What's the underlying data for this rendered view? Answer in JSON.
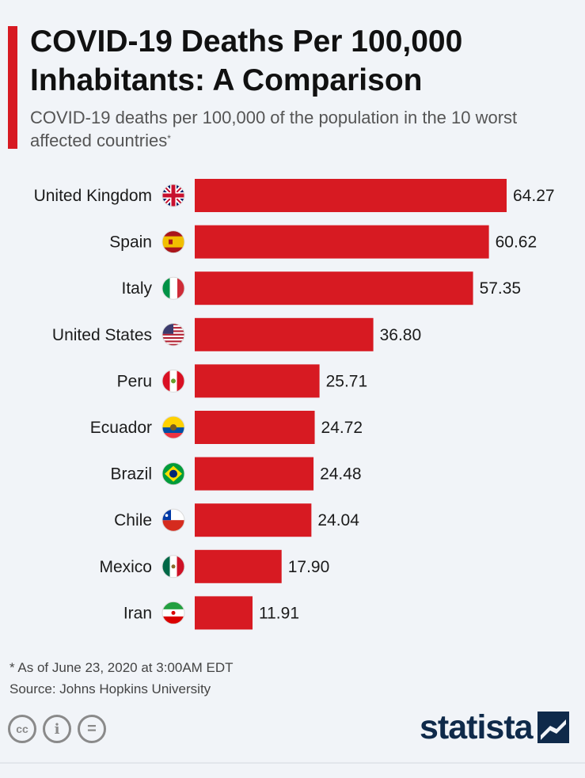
{
  "header": {
    "title": "COVID-19 Deaths Per 100,000 Inhabitants: A Comparison",
    "subtitle": "COVID-19 deaths per 100,000 of the population in the 10 worst affected countries",
    "subtitle_marker": "*"
  },
  "colors": {
    "accent": "#d71a22",
    "bar": "#d71a22",
    "logo": "#0f2a4a",
    "background": "#f1f4f8"
  },
  "chart_data": {
    "type": "bar",
    "orientation": "horizontal",
    "title": "COVID-19 Deaths Per 100,000 Inhabitants: A Comparison",
    "subtitle": "COVID-19 deaths per 100,000 of the population in the 10 worst affected countries",
    "categories": [
      "United Kingdom",
      "Spain",
      "Italy",
      "United States",
      "Peru",
      "Ecuador",
      "Brazil",
      "Chile",
      "Mexico",
      "Iran"
    ],
    "values": [
      64.27,
      60.62,
      57.35,
      36.8,
      25.71,
      24.72,
      24.48,
      24.04,
      17.9,
      11.91
    ],
    "value_labels": [
      "64.27",
      "60.62",
      "57.35",
      "36.80",
      "25.71",
      "24.72",
      "24.48",
      "24.04",
      "17.90",
      "11.91"
    ],
    "flag_icons": [
      "uk-flag-icon",
      "spain-flag-icon",
      "italy-flag-icon",
      "usa-flag-icon",
      "peru-flag-icon",
      "ecuador-flag-icon",
      "brazil-flag-icon",
      "chile-flag-icon",
      "mexico-flag-icon",
      "iran-flag-icon"
    ],
    "xlim": [
      0,
      64.27
    ],
    "grid": false,
    "xlabel": "",
    "ylabel": ""
  },
  "footer": {
    "note": "* As of June 23, 2020 at 3:00AM EDT",
    "source": "Source: Johns Hopkins University",
    "license_icons": [
      "creative-commons-icon",
      "attribution-icon",
      "no-derivatives-icon"
    ],
    "license_glyphs": [
      "cc",
      "i",
      "="
    ],
    "logo_text": "statista"
  }
}
